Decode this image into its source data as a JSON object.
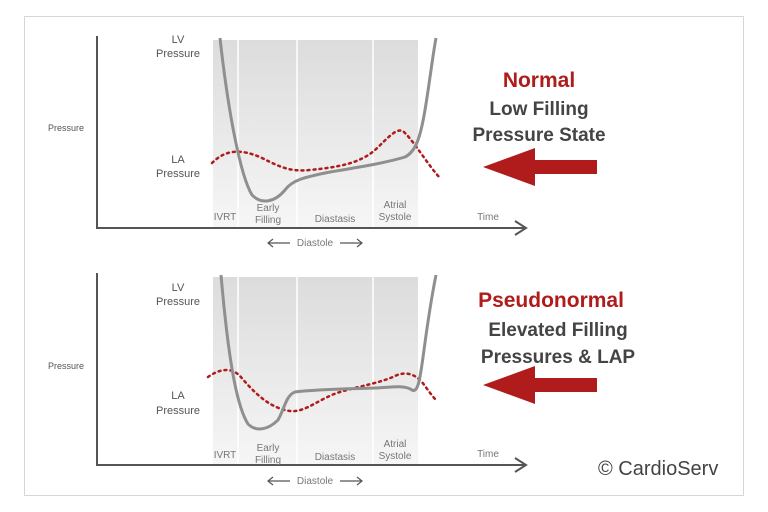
{
  "panels": [
    {
      "lv_label": [
        "LV",
        "Pressure"
      ],
      "la_label": [
        "LA",
        "Pressure"
      ],
      "pressure_label": "Pressure",
      "time_label": "Time",
      "phases": [
        "IVRT",
        "Early",
        "Filling",
        "Diastasis",
        "Atrial",
        "Systole"
      ],
      "diastole_label": "Diastole",
      "state_title": "Normal",
      "state_lines": [
        "Low Filling",
        "Pressure State"
      ]
    },
    {
      "lv_label": [
        "LV",
        "Pressure"
      ],
      "la_label": [
        "LA",
        "Pressure"
      ],
      "pressure_label": "Pressure",
      "time_label": "Time",
      "phases": [
        "IVRT",
        "Early",
        "Filling",
        "Diastasis",
        "Atrial",
        "Systole"
      ],
      "diastole_label": "Diastole",
      "state_title": "Pseudonormal",
      "state_lines": [
        "Elevated Filling",
        "Pressures & LAP"
      ]
    }
  ],
  "copyright": "© CardioServ",
  "colors": {
    "accent_red": "#b01c1c",
    "curve_gray": "#8f8f8f",
    "axis": "#555555",
    "shade": "#ececec"
  }
}
